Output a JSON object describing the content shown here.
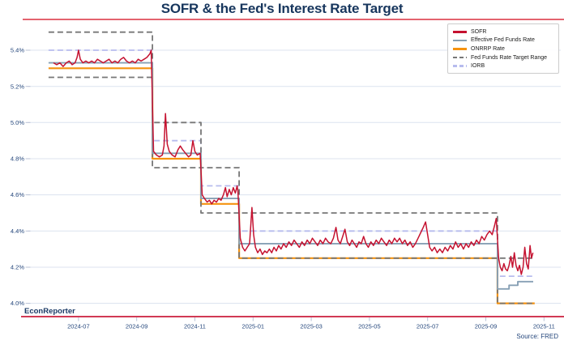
{
  "header": {
    "title": "SOFR & the Fed's Interest Rate Target"
  },
  "footer": {
    "brand": "EconReporter",
    "source": "Source: FRED"
  },
  "style_notes": {
    "title_color": "#17365d",
    "top_rule_color": "#e4636f",
    "bottom_rule_color": "#d13a54",
    "tick_label_color": "#25477c"
  },
  "chart_data": {
    "type": "line",
    "title": "SOFR & the Fed's Interest Rate Target",
    "xlabel": "",
    "ylabel": "",
    "x_unit": "months since 2024-06-01",
    "x_domain": [
      "2024-06",
      "2025-11"
    ],
    "ylim": [
      3.93,
      5.55
    ],
    "grid": true,
    "legend_position": "upper right",
    "style": {
      "grid": "#dce3ef",
      "tick": "#b9c2d6",
      "text": "#25477c"
    },
    "y_ticks": [
      {
        "v": 4.0,
        "label": "4.0%"
      },
      {
        "v": 4.2,
        "label": "4.2%"
      },
      {
        "v": 4.4,
        "label": "4.4%"
      },
      {
        "v": 4.6,
        "label": "4.6%"
      },
      {
        "v": 4.8,
        "label": "4.8%"
      },
      {
        "v": 5.0,
        "label": "5.0%"
      },
      {
        "v": 5.2,
        "label": "5.2%"
      },
      {
        "v": 5.4,
        "label": "5.4%"
      }
    ],
    "x_ticks": [
      {
        "t": 1,
        "label": "2024-07"
      },
      {
        "t": 3,
        "label": "2024-09"
      },
      {
        "t": 5,
        "label": "2024-11"
      },
      {
        "t": 7,
        "label": "2025-01"
      },
      {
        "t": 9,
        "label": "2025-03"
      },
      {
        "t": 11,
        "label": "2025-05"
      },
      {
        "t": 13,
        "label": "2025-07"
      },
      {
        "t": 15,
        "label": "2025-09"
      },
      {
        "t": 17,
        "label": "2025-11"
      }
    ],
    "rate_cut_times_t": [
      3.54,
      5.21,
      6.52,
      15.4
    ],
    "series": [
      {
        "id": "sofr",
        "name": "SOFR",
        "color": "#c51230",
        "width": 1.5,
        "points": [
          [
            0.14,
            5.33
          ],
          [
            0.25,
            5.32
          ],
          [
            0.36,
            5.33
          ],
          [
            0.47,
            5.31
          ],
          [
            0.58,
            5.33
          ],
          [
            0.68,
            5.34
          ],
          [
            0.78,
            5.32
          ],
          [
            0.88,
            5.33
          ],
          [
            0.95,
            5.36
          ],
          [
            1.0,
            5.4
          ],
          [
            1.06,
            5.35
          ],
          [
            1.15,
            5.33
          ],
          [
            1.25,
            5.34
          ],
          [
            1.35,
            5.33
          ],
          [
            1.45,
            5.34
          ],
          [
            1.55,
            5.33
          ],
          [
            1.65,
            5.35
          ],
          [
            1.75,
            5.34
          ],
          [
            1.85,
            5.33
          ],
          [
            1.95,
            5.34
          ],
          [
            2.05,
            5.35
          ],
          [
            2.15,
            5.33
          ],
          [
            2.25,
            5.34
          ],
          [
            2.35,
            5.33
          ],
          [
            2.45,
            5.35
          ],
          [
            2.55,
            5.36
          ],
          [
            2.65,
            5.34
          ],
          [
            2.75,
            5.33
          ],
          [
            2.85,
            5.34
          ],
          [
            2.95,
            5.33
          ],
          [
            3.05,
            5.35
          ],
          [
            3.15,
            5.34
          ],
          [
            3.25,
            5.35
          ],
          [
            3.35,
            5.36
          ],
          [
            3.45,
            5.38
          ],
          [
            3.5,
            5.4
          ],
          [
            3.58,
            4.84
          ],
          [
            3.68,
            4.82
          ],
          [
            3.78,
            4.81
          ],
          [
            3.88,
            4.82
          ],
          [
            3.94,
            4.87
          ],
          [
            3.99,
            5.05
          ],
          [
            4.05,
            4.88
          ],
          [
            4.12,
            4.84
          ],
          [
            4.22,
            4.82
          ],
          [
            4.32,
            4.81
          ],
          [
            4.42,
            4.85
          ],
          [
            4.5,
            4.87
          ],
          [
            4.58,
            4.85
          ],
          [
            4.68,
            4.83
          ],
          [
            4.78,
            4.81
          ],
          [
            4.86,
            4.82
          ],
          [
            4.93,
            4.9
          ],
          [
            5.0,
            4.84
          ],
          [
            5.08,
            4.82
          ],
          [
            5.18,
            4.83
          ],
          [
            5.25,
            4.6
          ],
          [
            5.33,
            4.58
          ],
          [
            5.42,
            4.56
          ],
          [
            5.5,
            4.57
          ],
          [
            5.58,
            4.55
          ],
          [
            5.66,
            4.57
          ],
          [
            5.74,
            4.56
          ],
          [
            5.82,
            4.58
          ],
          [
            5.9,
            4.57
          ],
          [
            5.98,
            4.6
          ],
          [
            6.05,
            4.64
          ],
          [
            6.11,
            4.59
          ],
          [
            6.18,
            4.63
          ],
          [
            6.25,
            4.6
          ],
          [
            6.32,
            4.64
          ],
          [
            6.39,
            4.61
          ],
          [
            6.45,
            4.65
          ],
          [
            6.48,
            4.62
          ],
          [
            6.56,
            4.36
          ],
          [
            6.64,
            4.31
          ],
          [
            6.72,
            4.29
          ],
          [
            6.8,
            4.31
          ],
          [
            6.88,
            4.33
          ],
          [
            6.96,
            4.53
          ],
          [
            7.02,
            4.38
          ],
          [
            7.08,
            4.31
          ],
          [
            7.16,
            4.28
          ],
          [
            7.24,
            4.3
          ],
          [
            7.32,
            4.27
          ],
          [
            7.4,
            4.29
          ],
          [
            7.48,
            4.28
          ],
          [
            7.56,
            4.3
          ],
          [
            7.64,
            4.28
          ],
          [
            7.72,
            4.31
          ],
          [
            7.8,
            4.29
          ],
          [
            7.88,
            4.32
          ],
          [
            7.96,
            4.3
          ],
          [
            8.05,
            4.33
          ],
          [
            8.14,
            4.31
          ],
          [
            8.23,
            4.34
          ],
          [
            8.32,
            4.32
          ],
          [
            8.41,
            4.35
          ],
          [
            8.5,
            4.33
          ],
          [
            8.59,
            4.31
          ],
          [
            8.68,
            4.34
          ],
          [
            8.77,
            4.32
          ],
          [
            8.86,
            4.35
          ],
          [
            8.95,
            4.33
          ],
          [
            9.04,
            4.36
          ],
          [
            9.13,
            4.34
          ],
          [
            9.22,
            4.32
          ],
          [
            9.31,
            4.35
          ],
          [
            9.4,
            4.33
          ],
          [
            9.49,
            4.36
          ],
          [
            9.58,
            4.34
          ],
          [
            9.67,
            4.33
          ],
          [
            9.76,
            4.36
          ],
          [
            9.85,
            4.42
          ],
          [
            9.92,
            4.35
          ],
          [
            10.0,
            4.33
          ],
          [
            10.08,
            4.37
          ],
          [
            10.16,
            4.41
          ],
          [
            10.24,
            4.34
          ],
          [
            10.32,
            4.32
          ],
          [
            10.4,
            4.35
          ],
          [
            10.48,
            4.33
          ],
          [
            10.56,
            4.31
          ],
          [
            10.64,
            4.34
          ],
          [
            10.72,
            4.33
          ],
          [
            10.8,
            4.37
          ],
          [
            10.88,
            4.33
          ],
          [
            10.96,
            4.31
          ],
          [
            11.05,
            4.34
          ],
          [
            11.14,
            4.32
          ],
          [
            11.23,
            4.35
          ],
          [
            11.32,
            4.33
          ],
          [
            11.41,
            4.36
          ],
          [
            11.5,
            4.34
          ],
          [
            11.59,
            4.32
          ],
          [
            11.68,
            4.35
          ],
          [
            11.77,
            4.33
          ],
          [
            11.86,
            4.36
          ],
          [
            11.95,
            4.34
          ],
          [
            12.04,
            4.36
          ],
          [
            12.13,
            4.33
          ],
          [
            12.22,
            4.35
          ],
          [
            12.31,
            4.32
          ],
          [
            12.4,
            4.34
          ],
          [
            12.49,
            4.31
          ],
          [
            12.58,
            4.33
          ],
          [
            12.67,
            4.36
          ],
          [
            12.76,
            4.39
          ],
          [
            12.85,
            4.42
          ],
          [
            12.93,
            4.45
          ],
          [
            13.0,
            4.38
          ],
          [
            13.07,
            4.31
          ],
          [
            13.15,
            4.29
          ],
          [
            13.24,
            4.31
          ],
          [
            13.33,
            4.28
          ],
          [
            13.42,
            4.3
          ],
          [
            13.51,
            4.28
          ],
          [
            13.6,
            4.31
          ],
          [
            13.69,
            4.29
          ],
          [
            13.78,
            4.32
          ],
          [
            13.87,
            4.3
          ],
          [
            13.96,
            4.34
          ],
          [
            14.05,
            4.31
          ],
          [
            14.14,
            4.33
          ],
          [
            14.23,
            4.3
          ],
          [
            14.32,
            4.33
          ],
          [
            14.41,
            4.31
          ],
          [
            14.5,
            4.34
          ],
          [
            14.59,
            4.32
          ],
          [
            14.68,
            4.35
          ],
          [
            14.77,
            4.33
          ],
          [
            14.86,
            4.37
          ],
          [
            14.95,
            4.35
          ],
          [
            15.04,
            4.38
          ],
          [
            15.13,
            4.4
          ],
          [
            15.22,
            4.38
          ],
          [
            15.3,
            4.43
          ],
          [
            15.36,
            4.47
          ],
          [
            15.44,
            4.25
          ],
          [
            15.5,
            4.2
          ],
          [
            15.56,
            4.18
          ],
          [
            15.62,
            4.22
          ],
          [
            15.68,
            4.19
          ],
          [
            15.74,
            4.18
          ],
          [
            15.8,
            4.21
          ],
          [
            15.86,
            4.26
          ],
          [
            15.92,
            4.2
          ],
          [
            15.98,
            4.28
          ],
          [
            16.04,
            4.21
          ],
          [
            16.1,
            4.18
          ],
          [
            16.16,
            4.21
          ],
          [
            16.22,
            4.16
          ],
          [
            16.28,
            4.2
          ],
          [
            16.34,
            4.31
          ],
          [
            16.4,
            4.22
          ],
          [
            16.46,
            4.19
          ],
          [
            16.52,
            4.32
          ],
          [
            16.57,
            4.25
          ],
          [
            16.62,
            4.28
          ]
        ]
      },
      {
        "id": "effr",
        "name": "Effective Fed Funds Rate",
        "color": "#87a0b5",
        "width": 1.9,
        "segments": [
          [
            -0.03,
            3.54,
            5.33
          ],
          [
            3.54,
            5.21,
            4.83
          ],
          [
            5.21,
            6.52,
            4.58
          ],
          [
            6.52,
            15.4,
            4.33
          ],
          [
            15.4,
            15.8,
            4.08
          ],
          [
            15.8,
            16.1,
            4.1
          ],
          [
            16.1,
            16.63,
            4.12
          ]
        ]
      },
      {
        "id": "onrrp",
        "name": "ONRRP Rate",
        "color": "#f5920f",
        "width": 2.2,
        "segments": [
          [
            -0.03,
            3.54,
            5.3
          ],
          [
            3.54,
            5.21,
            4.8
          ],
          [
            5.21,
            6.52,
            4.55
          ],
          [
            6.52,
            15.4,
            4.25
          ],
          [
            15.4,
            16.68,
            4.0
          ]
        ]
      },
      {
        "id": "target-range",
        "name": "Fed Funds Rate Target Range",
        "color": "#777777",
        "width": 1.8,
        "dash": "7 4",
        "upper": [
          [
            -0.03,
            3.54,
            5.5
          ],
          [
            3.54,
            5.21,
            5.0
          ],
          [
            5.21,
            6.52,
            4.75
          ],
          [
            6.52,
            15.4,
            4.5
          ],
          [
            15.4,
            16.68,
            4.25
          ]
        ],
        "lower": [
          [
            -0.03,
            3.54,
            5.25
          ],
          [
            3.54,
            5.21,
            4.75
          ],
          [
            5.21,
            6.52,
            4.5
          ],
          [
            6.52,
            15.4,
            4.25
          ],
          [
            15.4,
            16.68,
            4.0
          ]
        ]
      },
      {
        "id": "iorb",
        "name": "IORB",
        "color": "#b7bcee",
        "width": 1.8,
        "dash": "7 4",
        "segments": [
          [
            -0.03,
            3.54,
            5.4
          ],
          [
            3.54,
            5.21,
            4.9
          ],
          [
            5.21,
            6.52,
            4.65
          ],
          [
            6.52,
            15.4,
            4.4
          ],
          [
            15.4,
            16.68,
            4.15
          ]
        ]
      }
    ]
  }
}
